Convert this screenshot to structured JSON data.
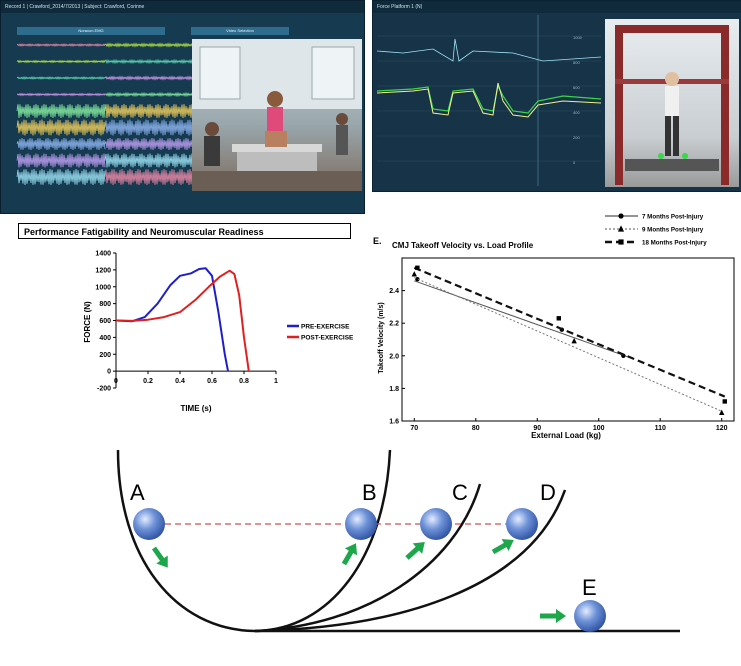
{
  "emg_panel": {
    "title": "Record 1 | Crawford_2014/7/2013 | Subject: Crawford, Corinne",
    "left_tab": "Noraxon EMG",
    "right_tab": "Video Selection",
    "colors": [
      "#f08aa8",
      "#b7ea3c",
      "#5ee0b8",
      "#d59bf0",
      "#86f0a0",
      "#f2d05a",
      "#8fb6f2",
      "#c0a0f5",
      "#9de3f5"
    ]
  },
  "force_panel": {
    "title": "Force Platform 1 (N)"
  },
  "fatigability": {
    "title": "Performance Fatigability and Neuromuscular Readiness",
    "chart_data": {
      "type": "line",
      "xlabel": "TIME (s)",
      "ylabel": "FORCE (N)",
      "xlim": [
        0,
        1
      ],
      "ylim": [
        -200,
        1400
      ],
      "x_ticks": [
        "0",
        "0.2",
        "0.4",
        "0.6",
        "0.8",
        "1"
      ],
      "y_ticks": [
        "-200",
        "0",
        "200",
        "400",
        "600",
        "800",
        "1000",
        "1200",
        "1400"
      ],
      "legend_position": "right",
      "series": [
        {
          "name": "PRE-EXERCISE",
          "color": "#1f1fc8",
          "x": [
            0,
            0.1,
            0.18,
            0.26,
            0.34,
            0.4,
            0.47,
            0.52,
            0.56,
            0.6,
            0.64,
            0.68,
            0.7
          ],
          "y": [
            600,
            590,
            640,
            800,
            1020,
            1130,
            1160,
            1210,
            1220,
            1130,
            700,
            200,
            0
          ]
        },
        {
          "name": "POST-EXERCISE",
          "color": "#e02020",
          "x": [
            0,
            0.1,
            0.2,
            0.3,
            0.4,
            0.5,
            0.58,
            0.65,
            0.71,
            0.74,
            0.77,
            0.8,
            0.83
          ],
          "y": [
            600,
            595,
            610,
            640,
            700,
            850,
            1000,
            1120,
            1190,
            1150,
            900,
            400,
            0
          ]
        }
      ]
    }
  },
  "cmj": {
    "panel_label": "E.",
    "title": "CMJ Takeoff Velocity vs. Load Profile",
    "chart_data": {
      "type": "scatter",
      "xlabel": "External Load (kg)",
      "ylabel": "Takeoff Velocity (m/s)",
      "xlim": [
        68,
        122
      ],
      "ylim": [
        1.6,
        2.6
      ],
      "x_ticks": [
        "70",
        "80",
        "90",
        "100",
        "110",
        "120"
      ],
      "y_ticks": [
        "1.6",
        "1.8",
        "2.0",
        "2.2",
        "2.4"
      ],
      "legend_position": "top-right",
      "series": [
        {
          "name": "7 Months Post-Injury",
          "marker": "circle",
          "dash": "solid",
          "points": [
            [
              70.5,
              2.47
            ],
            [
              94,
              2.16
            ],
            [
              104,
              2.0
            ]
          ],
          "fit": [
            [
              70,
              2.46
            ],
            [
              105,
              1.99
            ]
          ]
        },
        {
          "name": "9 Months Post-Injury",
          "marker": "triangle",
          "dash": "dotted",
          "points": [
            [
              70,
              2.5
            ],
            [
              96,
              2.09
            ],
            [
              120,
              1.65
            ]
          ],
          "fit": [
            [
              70,
              2.48
            ],
            [
              120,
              1.66
            ]
          ]
        },
        {
          "name": "18 Months Post-Injury",
          "marker": "square",
          "dash": "dashed",
          "points": [
            [
              70.5,
              2.54
            ],
            [
              93.5,
              2.23
            ],
            [
              120.5,
              1.72
            ]
          ],
          "fit": [
            [
              70,
              2.54
            ],
            [
              120.5,
              1.75
            ]
          ]
        }
      ]
    }
  },
  "ramps": {
    "labels": [
      "A",
      "B",
      "C",
      "D",
      "E"
    ]
  }
}
